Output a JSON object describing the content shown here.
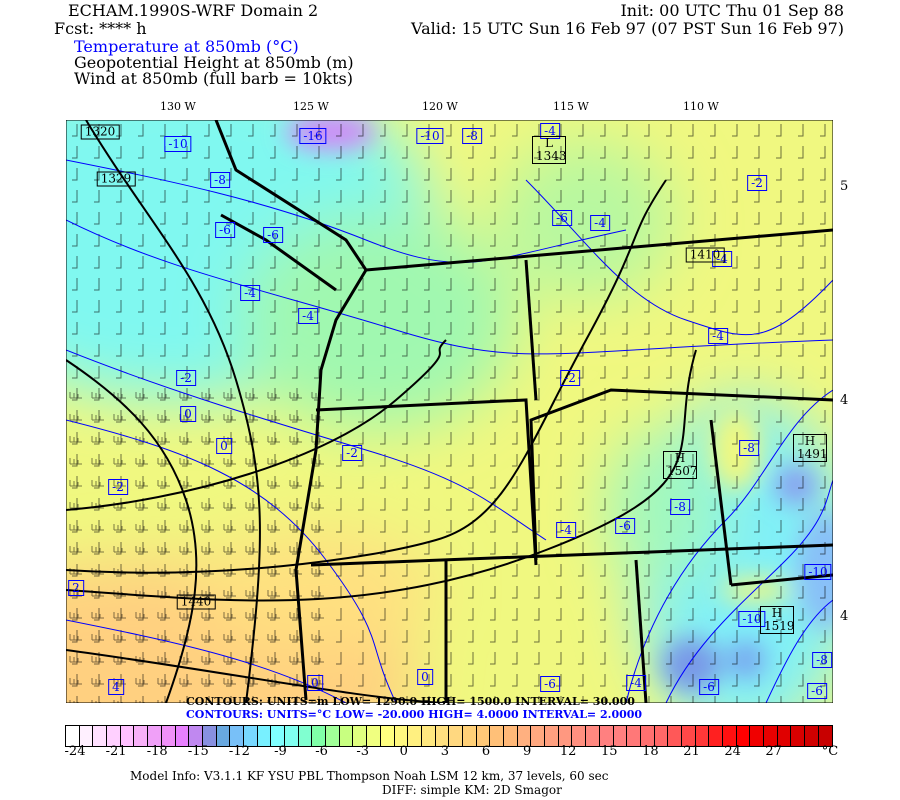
{
  "header": {
    "title": "ECHAM.1990S-WRF Domain 2",
    "init": "Init: 00 UTC Thu 01 Sep 88",
    "fcst": "Fcst: **** h",
    "valid": "Valid: 15 UTC Sun 16 Feb 97 (07 PST Sun 16 Feb 97)",
    "fields": [
      "Temperature at 850mb (°C)",
      "Geopotential Height at 850mb (m)",
      "Wind at 850mb (full barb = 10kts)"
    ]
  },
  "map": {
    "lon_labels": [
      "130 W",
      "125 W",
      "120 W",
      "115 W",
      "110 W"
    ],
    "lat_labels": [
      "5",
      "4",
      "4"
    ],
    "temp_labels": [
      "-10",
      "-16",
      "-10",
      "-8",
      "-4",
      "-8",
      "-6",
      "-6",
      "-4",
      "-4",
      "-2",
      "0",
      "0",
      "-2",
      "-2",
      "-2",
      "-6",
      "-4",
      "-4",
      "-4",
      "-2",
      "2",
      "4",
      "0",
      "0",
      "-6",
      "-4",
      "-8",
      "-8",
      "-6",
      "-10",
      "-10",
      "-8",
      "-6",
      "-6",
      "-4"
    ],
    "height_labels": [
      "1320",
      "1329",
      "L 1343",
      "1410",
      "H 1507",
      "H 1491",
      "H 1519",
      "1440"
    ],
    "colors": {
      "temp_contour": "#0000ff",
      "height_contour": "#000000",
      "boundary": "#000000"
    }
  },
  "contour_info": {
    "height": "CONTOURS:  UNITS=m   LOW=  1290.0       HIGH=  1500.0       INTERVAL=    30.000",
    "temp": "CONTOURS:  UNITS=°C   LOW=  -20.000       HIGH=  4.0000       INTERVAL=    2.0000"
  },
  "colorbar": {
    "ticks": [
      "-24",
      "-21",
      "-18",
      "-15",
      "-12",
      "-9",
      "-6",
      "-3",
      "0",
      "3",
      "6",
      "9",
      "12",
      "15",
      "18",
      "21",
      "24",
      "27"
    ],
    "unit": "°C",
    "colors": [
      "#ffffff",
      "#fff0ff",
      "#ffe0ff",
      "#ffd0ff",
      "#ffc0ff",
      "#f8b0f8",
      "#f0a0f8",
      "#f090f8",
      "#e880ff",
      "#c088f0",
      "#8890e0",
      "#68a8e0",
      "#78c0f8",
      "#78d8ff",
      "#78f0ff",
      "#80ffff",
      "#80fff0",
      "#80ffd0",
      "#80ffa8",
      "#a0ff98",
      "#c8ff80",
      "#e0ff80",
      "#f0ff80",
      "#ffff80",
      "#fff880",
      "#fff080",
      "#ffe880",
      "#ffe080",
      "#ffd880",
      "#ffd078",
      "#ffc878",
      "#ffc078",
      "#ffb878",
      "#ffb080",
      "#ffa880",
      "#ffa080",
      "#ff9880",
      "#ff9080",
      "#ff8880",
      "#ff8080",
      "#ff8080",
      "#ff7878",
      "#ff7070",
      "#ff6868",
      "#ff5858",
      "#ff4848",
      "#ff3838",
      "#ff2020",
      "#ff1010",
      "#ff0000",
      "#f00000",
      "#e80000",
      "#e00000",
      "#d80000",
      "#d00000",
      "#c80000"
    ]
  },
  "footer": {
    "line1": "Model Info: V3.1.1    KF      YSU PBL   Thompson    Noah LSM   12 km,    37 levels,    60 sec",
    "line2": "DIFF: simple KM: 2D Smagor"
  }
}
